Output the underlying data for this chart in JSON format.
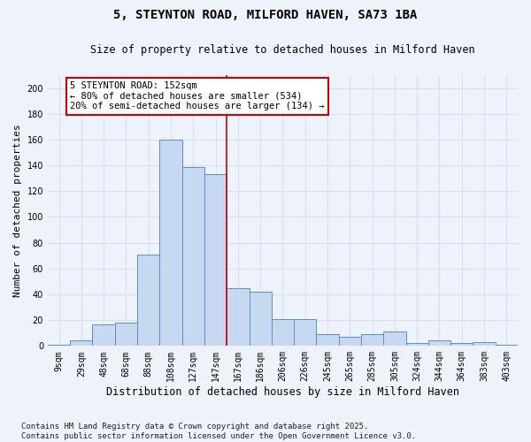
{
  "title": "5, STEYNTON ROAD, MILFORD HAVEN, SA73 1BA",
  "subtitle": "Size of property relative to detached houses in Milford Haven",
  "xlabel": "Distribution of detached houses by size in Milford Haven",
  "ylabel": "Number of detached properties",
  "categories": [
    "9sqm",
    "29sqm",
    "48sqm",
    "68sqm",
    "88sqm",
    "108sqm",
    "127sqm",
    "147sqm",
    "167sqm",
    "186sqm",
    "206sqm",
    "226sqm",
    "245sqm",
    "265sqm",
    "285sqm",
    "305sqm",
    "324sqm",
    "344sqm",
    "364sqm",
    "383sqm",
    "403sqm"
  ],
  "values": [
    1,
    4,
    17,
    18,
    71,
    160,
    139,
    133,
    45,
    42,
    21,
    21,
    9,
    7,
    9,
    11,
    2,
    4,
    2,
    3,
    1
  ],
  "bar_color": "#c7d9f0",
  "bar_edgecolor": "#5b8fc9",
  "vline_x_index": 7,
  "vline_color": "#cc0000",
  "annotation_text": "5 STEYNTON ROAD: 152sqm\n← 80% of detached houses are smaller (534)\n20% of semi-detached houses are larger (134) →",
  "annotation_box_edgecolor": "#cc0000",
  "annotation_box_facecolor": "#ffffff",
  "ylim": [
    0,
    210
  ],
  "yticks": [
    0,
    20,
    40,
    60,
    80,
    100,
    120,
    140,
    160,
    180,
    200
  ],
  "background_color": "#eef2fb",
  "grid_color": "#d8dff0",
  "footer": "Contains HM Land Registry data © Crown copyright and database right 2025.\nContains public sector information licensed under the Open Government Licence v3.0.",
  "title_fontsize": 10,
  "subtitle_fontsize": 8.5,
  "xlabel_fontsize": 8.5,
  "ylabel_fontsize": 8,
  "tick_fontsize": 7,
  "footer_fontsize": 6.5,
  "annotation_fontsize": 7.5
}
